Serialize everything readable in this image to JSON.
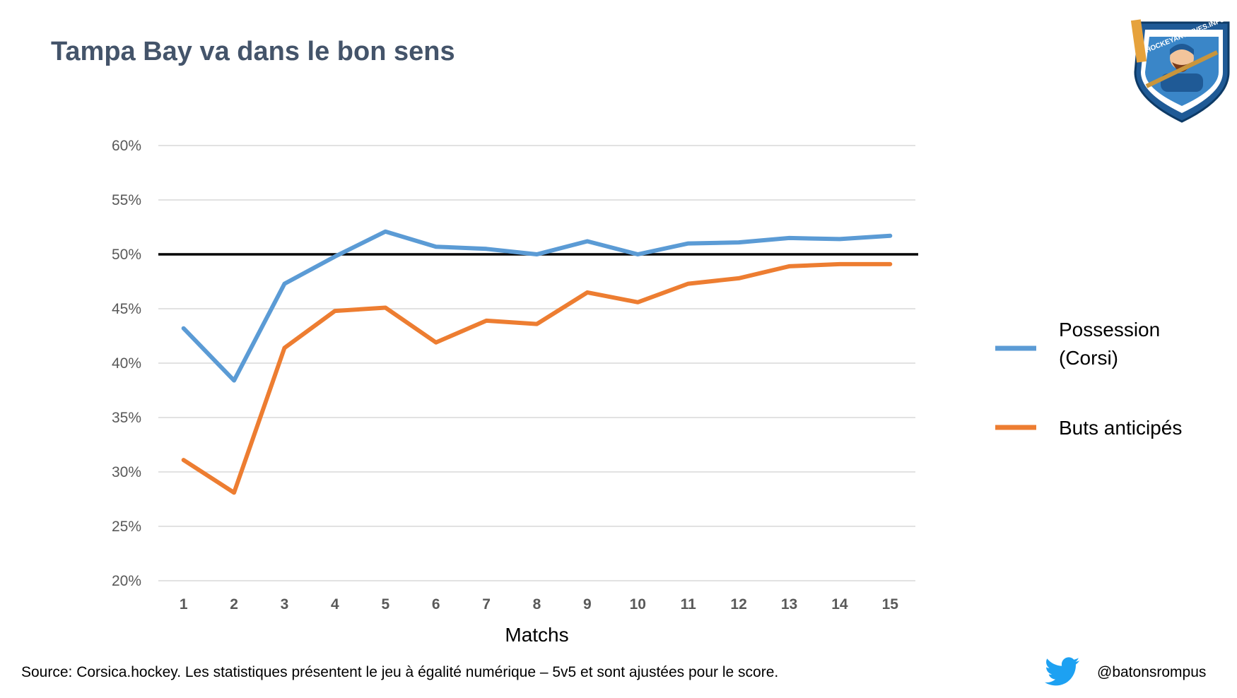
{
  "title": "Tampa Bay va dans le bon sens",
  "logo": {
    "text": "HOCKEYARCHIVES.INFO",
    "icon": "hockey-player-shield-logo"
  },
  "chart_data": {
    "type": "line",
    "title": "",
    "xlabel": "Matchs",
    "ylabel": "",
    "categories": [
      "1",
      "2",
      "3",
      "4",
      "5",
      "6",
      "7",
      "8",
      "9",
      "10",
      "11",
      "12",
      "13",
      "14",
      "15"
    ],
    "yticks": [
      "20%",
      "25%",
      "30%",
      "35%",
      "40%",
      "45%",
      "50%",
      "55%",
      "60%"
    ],
    "ylim": [
      20,
      60
    ],
    "grid": true,
    "reference_line": {
      "value": 50,
      "color": "#000000"
    },
    "legend_position": "right",
    "series": [
      {
        "name": "Possession\n(Corsi)",
        "name_lines": [
          "Possession",
          "(Corsi)"
        ],
        "color": "#5b9bd5",
        "values": [
          43.2,
          38.4,
          47.3,
          49.8,
          52.1,
          50.7,
          50.5,
          50.0,
          51.2,
          50.0,
          51.0,
          51.1,
          51.5,
          51.4,
          51.7
        ]
      },
      {
        "name": "Buts anticipés",
        "name_lines": [
          "Buts anticipés"
        ],
        "color": "#ed7d31",
        "values": [
          31.1,
          28.1,
          41.4,
          44.8,
          45.1,
          41.9,
          43.9,
          43.6,
          46.5,
          45.6,
          47.3,
          47.8,
          48.9,
          49.1,
          49.1
        ]
      }
    ]
  },
  "footer": {
    "source": "Source: Corsica.hockey. Les statistiques présentent le jeu à égalité numérique – 5v5 et sont ajustées pour le score.",
    "twitter_icon": "twitter-bird-icon",
    "twitter_color": "#1da1f2",
    "handle": "@batonsrompus"
  }
}
